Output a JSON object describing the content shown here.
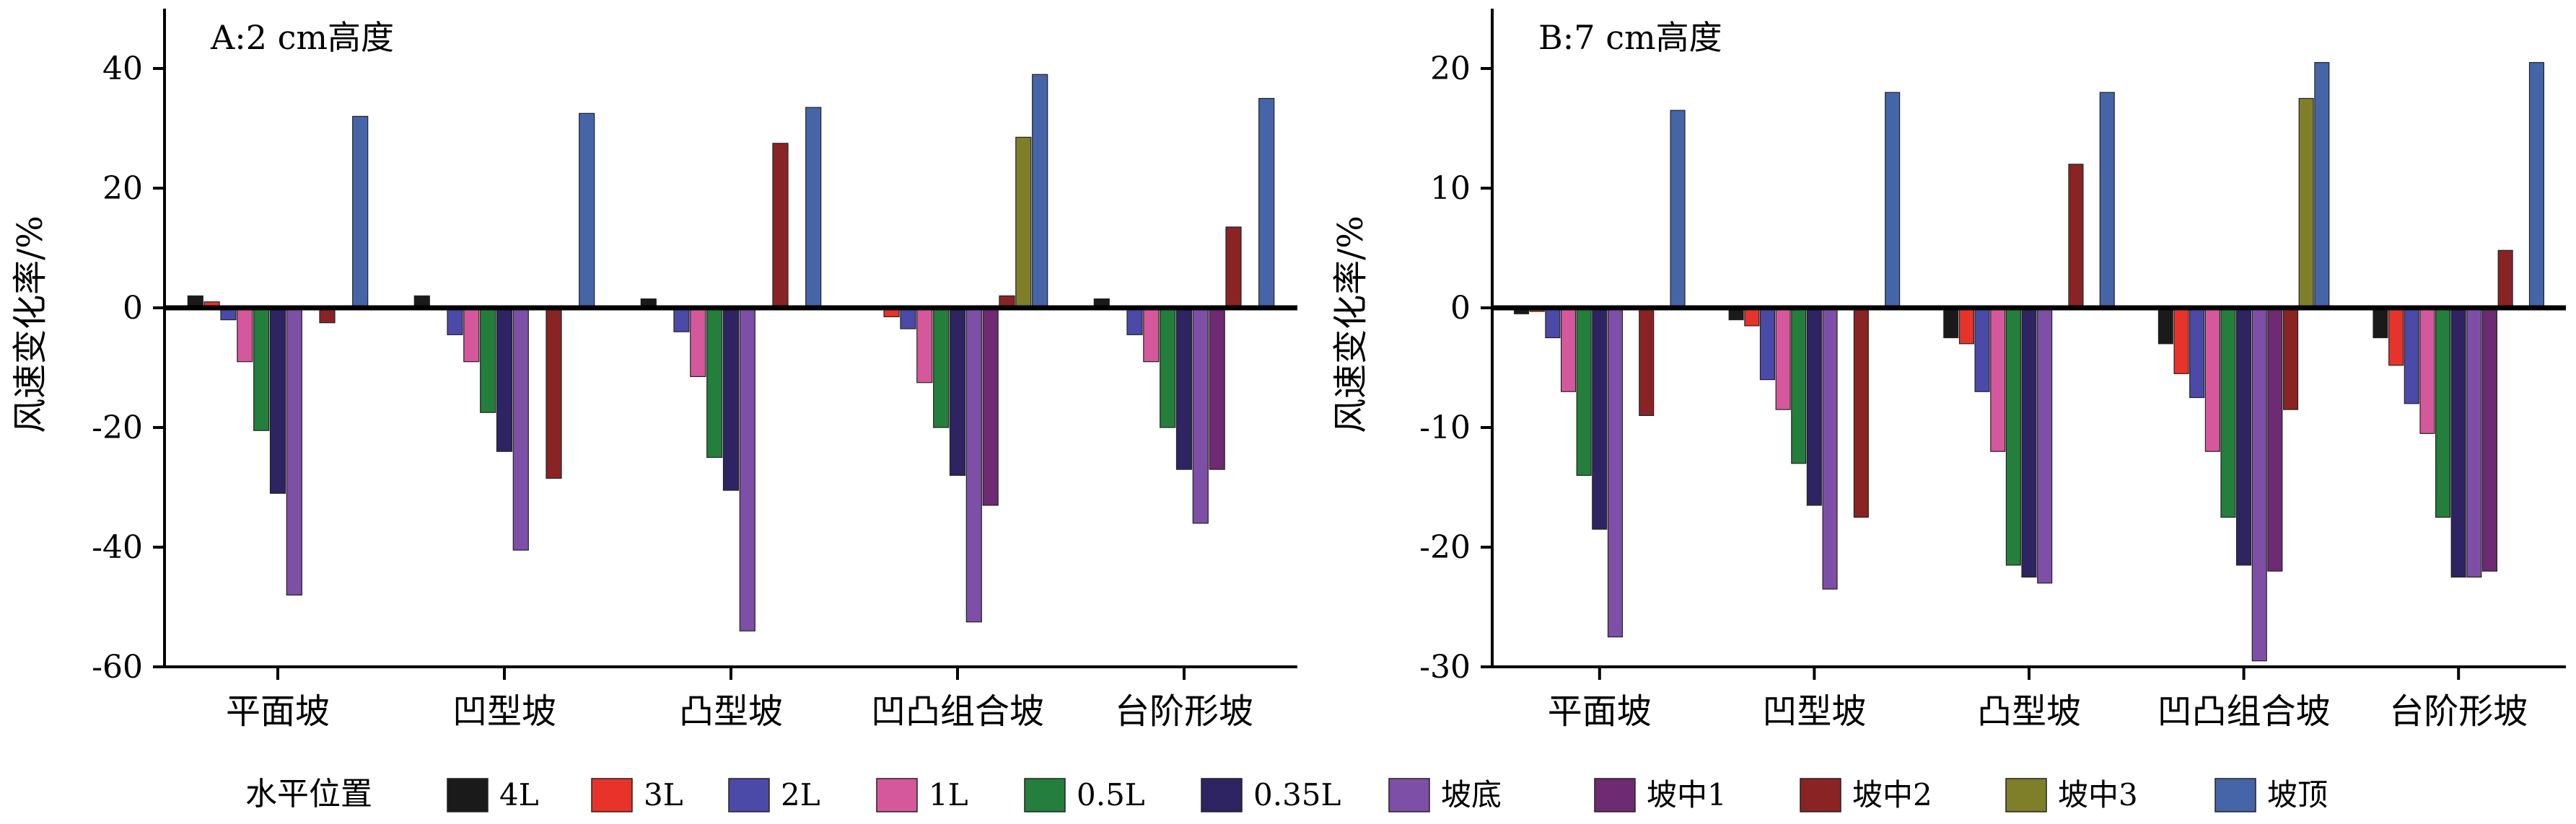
{
  "legend": {
    "title": "水平位置",
    "entries": [
      {
        "label": "4L",
        "color": "#1a1a1a"
      },
      {
        "label": "3L",
        "color": "#e8332a"
      },
      {
        "label": "2L",
        "color": "#4b4aa8"
      },
      {
        "label": "1L",
        "color": "#d6589c"
      },
      {
        "label": "0.5L",
        "color": "#237f3b"
      },
      {
        "label": "0.35L",
        "color": "#2e2463"
      },
      {
        "label": "坡底",
        "color": "#7e4fa6"
      },
      {
        "label": "坡中1",
        "color": "#6e2a72"
      },
      {
        "label": "坡中2",
        "color": "#8a2424"
      },
      {
        "label": "坡中3",
        "color": "#7f7f2a"
      },
      {
        "label": "坡顶",
        "color": "#4565a8"
      }
    ]
  },
  "chart_data": [
    {
      "type": "bar",
      "title": "A:2 cm高度",
      "ylabel": "风速变化率/%",
      "xlabel": "",
      "ylim": [
        -60,
        50
      ],
      "yticks": [
        -60,
        -40,
        -20,
        0,
        20,
        40
      ],
      "grid": false,
      "legend_position": "bottom",
      "categories": [
        "平面坡",
        "凹型坡",
        "凸型坡",
        "凹凸组合坡",
        "台阶形坡"
      ],
      "series": [
        {
          "name": "4L",
          "values": [
            2.0,
            2.0,
            1.5,
            0.3,
            1.5
          ]
        },
        {
          "name": "3L",
          "values": [
            1.0,
            0.3,
            0.3,
            -1.5,
            0.3
          ]
        },
        {
          "name": "2L",
          "values": [
            -2.0,
            -4.5,
            -4.0,
            -3.5,
            -4.5
          ]
        },
        {
          "name": "1L",
          "values": [
            -9.0,
            -9.0,
            -11.5,
            -12.5,
            -9.0
          ]
        },
        {
          "name": "0.5L",
          "values": [
            -20.5,
            -17.5,
            -25.0,
            -20.0,
            -20.0
          ]
        },
        {
          "name": "0.35L",
          "values": [
            -31.0,
            -24.0,
            -30.5,
            -28.0,
            -27.0
          ]
        },
        {
          "name": "坡底",
          "values": [
            -48.0,
            -40.5,
            -54.0,
            -52.5,
            -36.0
          ]
        },
        {
          "name": "坡中1",
          "values": [
            null,
            null,
            null,
            -33.0,
            -27.0
          ]
        },
        {
          "name": "坡中2",
          "values": [
            -2.5,
            -28.5,
            27.5,
            2.0,
            13.5
          ]
        },
        {
          "name": "坡中3",
          "values": [
            null,
            null,
            null,
            28.5,
            null
          ]
        },
        {
          "name": "坡顶",
          "values": [
            32.0,
            32.5,
            33.5,
            39.0,
            35.0
          ]
        }
      ]
    },
    {
      "type": "bar",
      "title": "B:7 cm高度",
      "ylabel": "风速变化率/%",
      "xlabel": "",
      "ylim": [
        -30,
        25
      ],
      "yticks": [
        -30,
        -20,
        -10,
        0,
        10,
        20
      ],
      "grid": false,
      "legend_position": "bottom",
      "categories": [
        "平面坡",
        "凹型坡",
        "凸型坡",
        "凹凸组合坡",
        "台阶形坡"
      ],
      "series": [
        {
          "name": "4L",
          "values": [
            -0.5,
            -1.0,
            -2.5,
            -3.0,
            -2.5
          ]
        },
        {
          "name": "3L",
          "values": [
            -0.3,
            -1.5,
            -3.0,
            -5.5,
            -4.8
          ]
        },
        {
          "name": "2L",
          "values": [
            -2.5,
            -6.0,
            -7.0,
            -7.5,
            -8.0
          ]
        },
        {
          "name": "1L",
          "values": [
            -7.0,
            -8.5,
            -12.0,
            -12.0,
            -10.5
          ]
        },
        {
          "name": "0.5L",
          "values": [
            -14.0,
            -13.0,
            -21.5,
            -17.5,
            -17.5
          ]
        },
        {
          "name": "0.35L",
          "values": [
            -18.5,
            -16.5,
            -22.5,
            -21.5,
            -22.5
          ]
        },
        {
          "name": "坡底",
          "values": [
            -27.5,
            -23.5,
            -23.0,
            -29.5,
            -22.5
          ]
        },
        {
          "name": "坡中1",
          "values": [
            null,
            null,
            null,
            -22.0,
            -22.0
          ]
        },
        {
          "name": "坡中2",
          "values": [
            -9.0,
            -17.5,
            12.0,
            -8.5,
            4.8
          ]
        },
        {
          "name": "坡中3",
          "values": [
            null,
            null,
            null,
            17.5,
            null
          ]
        },
        {
          "name": "坡顶",
          "values": [
            16.5,
            18.0,
            18.0,
            20.5,
            20.5
          ]
        }
      ]
    }
  ]
}
